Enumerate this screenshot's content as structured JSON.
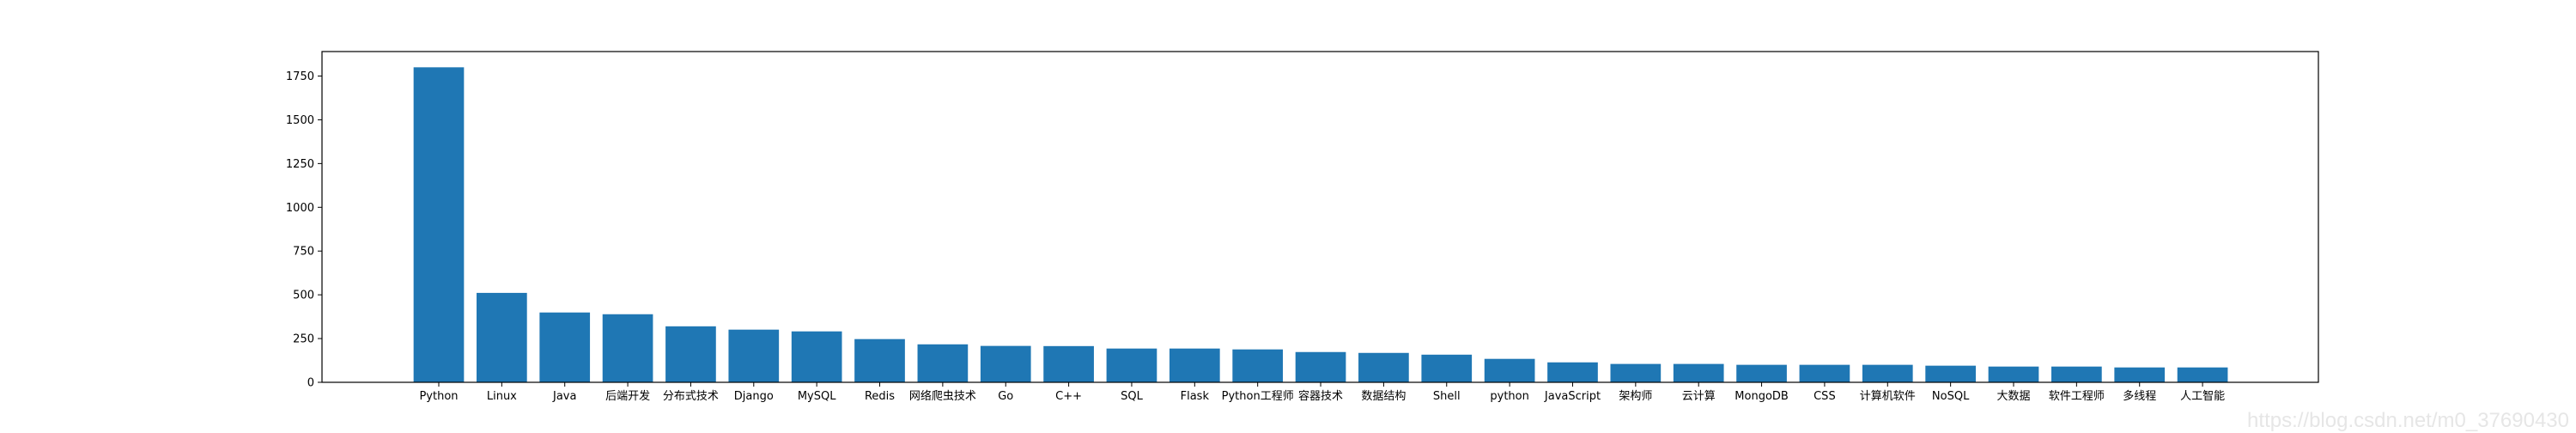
{
  "chart_data": {
    "type": "bar",
    "title": "",
    "xlabel": "",
    "ylabel": "",
    "categories": [
      "Python",
      "Linux",
      "Java",
      "后端开发",
      "分布式技术",
      "Django",
      "MySQL",
      "Redis",
      "网络爬虫技术",
      "Go",
      "C++",
      "SQL",
      "Flask",
      "Python工程师",
      "容器技术",
      "数据结构",
      "Shell",
      "python",
      "JavaScript",
      "架构师",
      "云计算",
      "MongoDB",
      "CSS",
      "计算机软件",
      "NoSQL",
      "大数据",
      "软件工程师",
      "多线程",
      "人工智能"
    ],
    "values": [
      1800,
      511,
      399,
      389,
      320,
      301,
      291,
      247,
      217,
      208,
      207,
      193,
      193,
      188,
      173,
      168,
      158,
      134,
      114,
      105,
      105,
      100,
      100,
      100,
      95,
      90,
      90,
      85,
      85
    ],
    "ylim": [
      0,
      1890
    ],
    "yticks": [
      0,
      250,
      500,
      750,
      1000,
      1250,
      1500,
      1750
    ],
    "bar_color": "#1f77b4",
    "grid": false,
    "legend": "none"
  },
  "watermark": "https://blog.csdn.net/m0_37690430"
}
